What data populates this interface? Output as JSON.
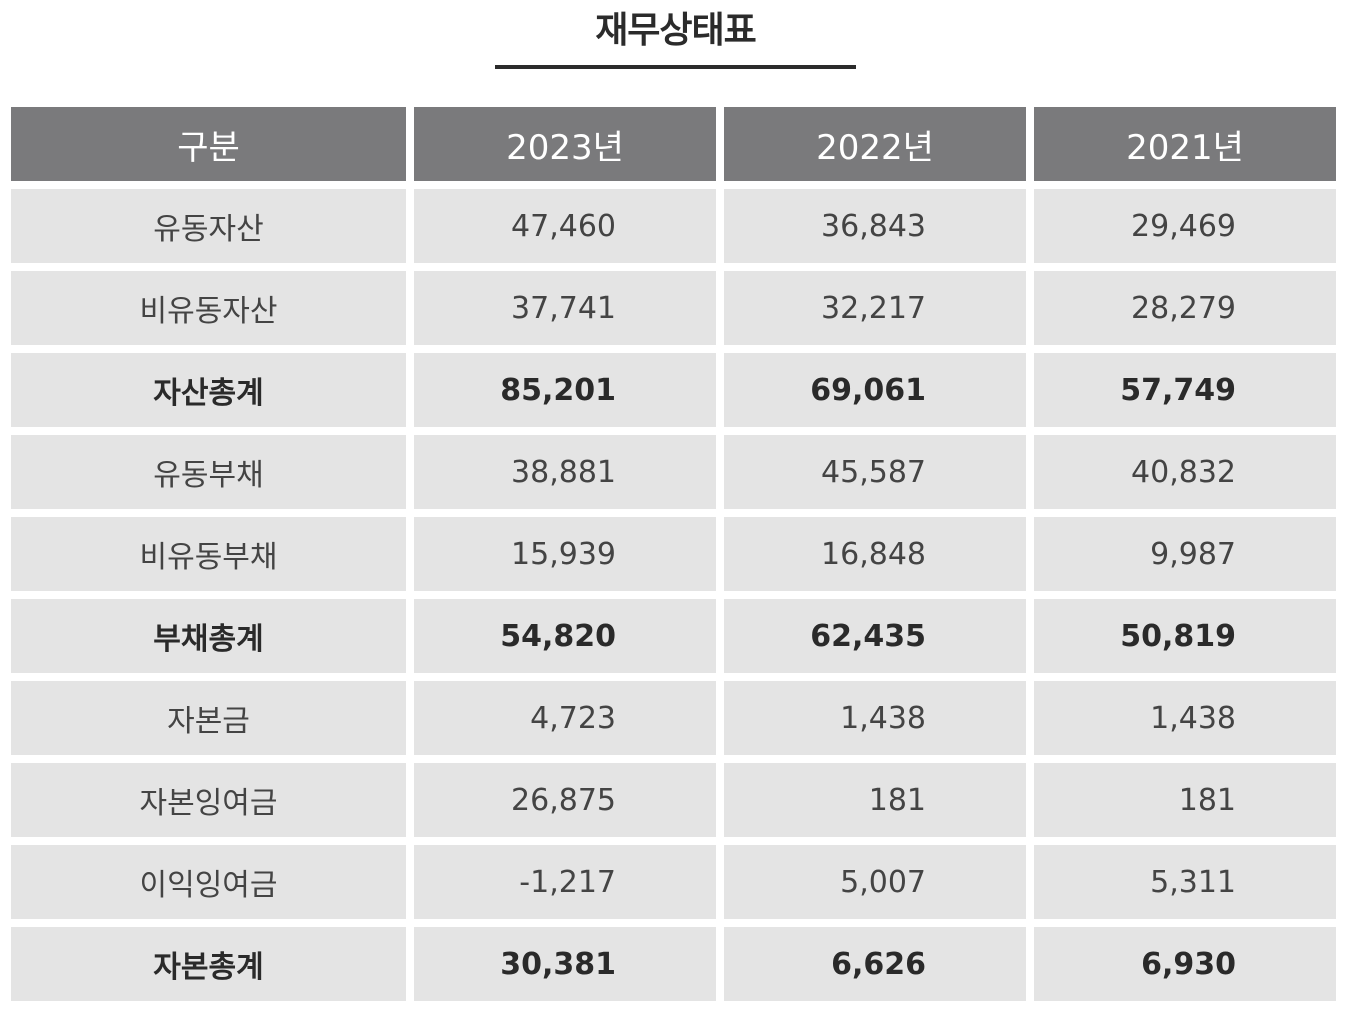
{
  "title": "재무상태표",
  "table": {
    "headers": [
      "구분",
      "2023년",
      "2022년",
      "2021년"
    ],
    "rows": [
      {
        "label": "유동자산",
        "values": [
          "47,460",
          "36,843",
          "29,469"
        ],
        "total": false
      },
      {
        "label": "비유동자산",
        "values": [
          "37,741",
          "32,217",
          "28,279"
        ],
        "total": false
      },
      {
        "label": "자산총계",
        "values": [
          "85,201",
          "69,061",
          "57,749"
        ],
        "total": true
      },
      {
        "label": "유동부채",
        "values": [
          "38,881",
          "45,587",
          "40,832"
        ],
        "total": false
      },
      {
        "label": "비유동부채",
        "values": [
          "15,939",
          "16,848",
          "9,987"
        ],
        "total": false
      },
      {
        "label": "부채총계",
        "values": [
          "54,820",
          "62,435",
          "50,819"
        ],
        "total": true
      },
      {
        "label": "자본금",
        "values": [
          "4,723",
          "1,438",
          "1,438"
        ],
        "total": false
      },
      {
        "label": "자본잉여금",
        "values": [
          "26,875",
          "181",
          "181"
        ],
        "total": false
      },
      {
        "label": "이익잉여금",
        "values": [
          "-1,217",
          "5,007",
          "5,311"
        ],
        "total": false
      },
      {
        "label": "자본총계",
        "values": [
          "30,381",
          "6,626",
          "6,930"
        ],
        "total": true
      }
    ]
  },
  "colors": {
    "header_bg": "#7a7a7c",
    "cell_bg": "#e4e4e4",
    "title_text": "#2b2b2b"
  }
}
